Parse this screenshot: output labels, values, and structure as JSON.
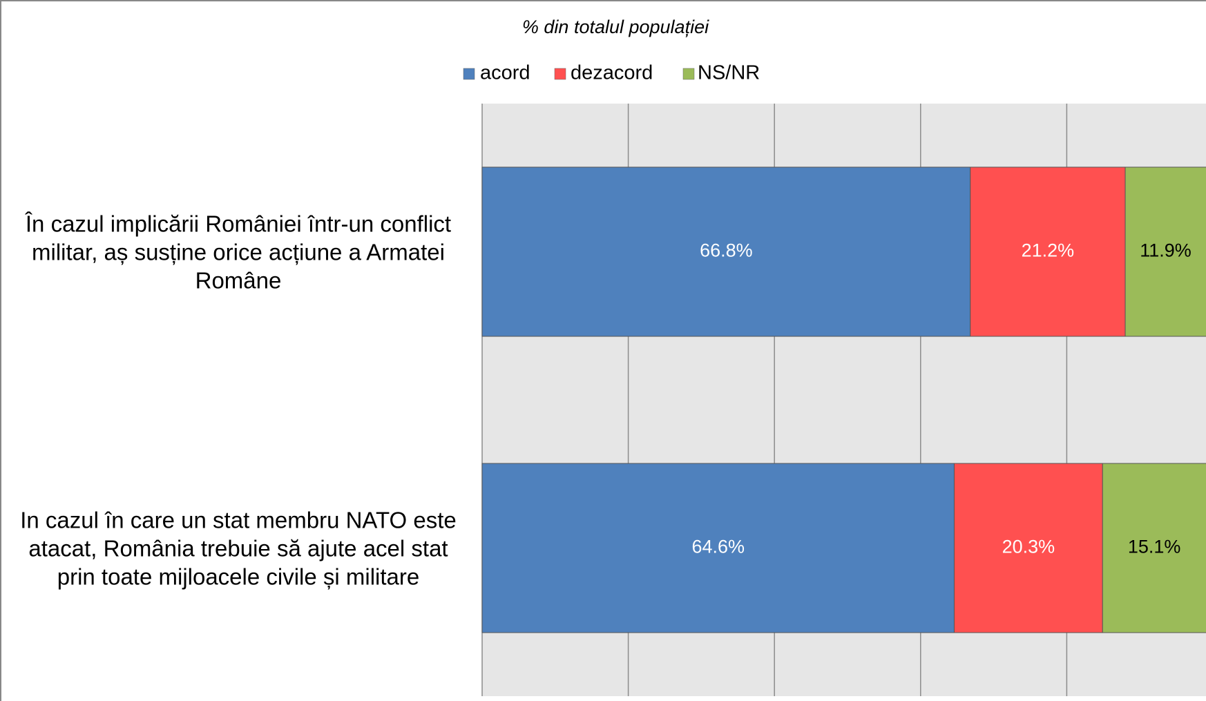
{
  "chart_data": {
    "type": "stacked-bar-horizontal",
    "title": "% din totalul populației",
    "categories": [
      "În cazul implicării României într-un conflict militar, aș susține orice acțiune a Armatei Române",
      "In cazul în care un stat membru NATO este atacat, România trebuie să ajute acel stat prin toate mijloacele civile și militare"
    ],
    "series": [
      {
        "name": "acord",
        "color": "#4f81bd",
        "label_color": "#ffffff",
        "values": [
          66.8,
          64.6
        ],
        "value_labels": [
          "66.8%",
          "64.6%"
        ]
      },
      {
        "name": "dezacord",
        "color": "#ff5050",
        "label_color": "#ffffff",
        "values": [
          21.2,
          20.3
        ],
        "value_labels": [
          "21.2%",
          "20.3%"
        ]
      },
      {
        "name": "NS/NR",
        "color": "#9bbb59",
        "label_color": "#000000",
        "values": [
          11.9,
          15.1
        ],
        "value_labels": [
          "11.9%",
          "15.1%"
        ]
      }
    ],
    "xlim": [
      0,
      100
    ],
    "xticks": [
      0,
      20,
      40,
      60,
      80,
      100
    ],
    "grid": true,
    "legend": "top"
  }
}
